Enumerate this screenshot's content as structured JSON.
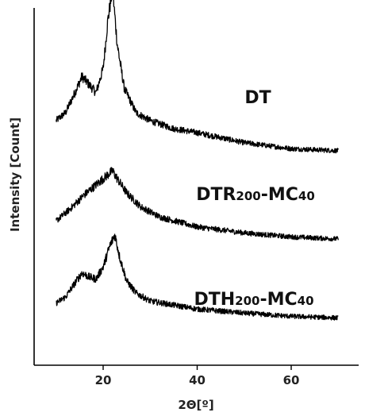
{
  "chart_data": {
    "type": "line",
    "xlabel": "2Θ[º]",
    "ylabel": "Intensity [Count]",
    "xlim": [
      5,
      72
    ],
    "x_ticks": [
      "20",
      "40",
      "60"
    ],
    "x_tick_values": [
      20,
      40,
      60
    ],
    "y_ticks": "none",
    "grid": false,
    "legend": "none",
    "series": [
      {
        "name": "DT",
        "label": {
          "main": "DT",
          "sub1": "",
          "mid": "",
          "sub2": ""
        },
        "points": [
          [
            10,
            6.1
          ],
          [
            12,
            6.3
          ],
          [
            14,
            6.8
          ],
          [
            15.5,
            7.2
          ],
          [
            17,
            7.0
          ],
          [
            18.5,
            6.8
          ],
          [
            20,
            7.4
          ],
          [
            21,
            8.6
          ],
          [
            22,
            9.4
          ],
          [
            23,
            8.0
          ],
          [
            24.5,
            6.9
          ],
          [
            27,
            6.3
          ],
          [
            30,
            6.1
          ],
          [
            35,
            5.9
          ],
          [
            40,
            5.8
          ],
          [
            50,
            5.55
          ],
          [
            60,
            5.4
          ],
          [
            70,
            5.35
          ]
        ]
      },
      {
        "name": "DTR200-MC40",
        "label": {
          "main": "DTR",
          "sub1": "200",
          "mid": "-MC",
          "sub2": "40"
        },
        "points": [
          [
            10,
            3.6
          ],
          [
            13,
            3.9
          ],
          [
            16,
            4.25
          ],
          [
            19,
            4.55
          ],
          [
            21,
            4.75
          ],
          [
            22,
            4.85
          ],
          [
            23,
            4.65
          ],
          [
            25,
            4.3
          ],
          [
            28,
            3.95
          ],
          [
            32,
            3.7
          ],
          [
            40,
            3.45
          ],
          [
            50,
            3.3
          ],
          [
            60,
            3.2
          ],
          [
            70,
            3.15
          ]
        ]
      },
      {
        "name": "DTH200-MC40",
        "label": {
          "main": "DTH",
          "sub1": "200",
          "mid": "-MC",
          "sub2": "40"
        },
        "points": [
          [
            10,
            1.55
          ],
          [
            12,
            1.7
          ],
          [
            14,
            2.05
          ],
          [
            15.5,
            2.3
          ],
          [
            17,
            2.2
          ],
          [
            18.5,
            2.15
          ],
          [
            20,
            2.45
          ],
          [
            21.5,
            3.0
          ],
          [
            22.5,
            3.25
          ],
          [
            23.5,
            2.7
          ],
          [
            25,
            2.1
          ],
          [
            27,
            1.8
          ],
          [
            30,
            1.6
          ],
          [
            35,
            1.5
          ],
          [
            40,
            1.4
          ],
          [
            50,
            1.3
          ],
          [
            60,
            1.22
          ],
          [
            70,
            1.18
          ]
        ]
      }
    ]
  }
}
